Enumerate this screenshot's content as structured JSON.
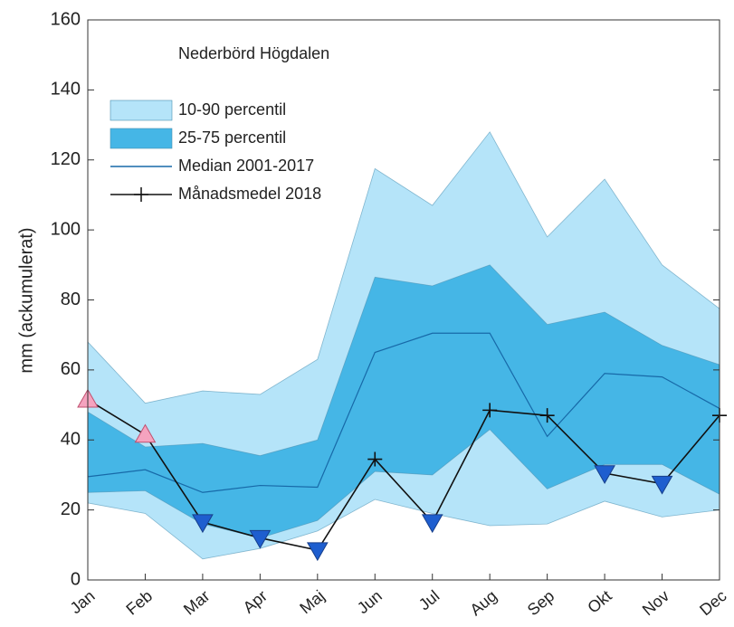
{
  "chart_data": {
    "type": "band-line",
    "title": "Nederbörd Högdalen",
    "ylabel": "mm (ackumulerat)",
    "categories": [
      "Jan",
      "Feb",
      "Mar",
      "Apr",
      "Maj",
      "Jun",
      "Jul",
      "Aug",
      "Sep",
      "Okt",
      "Nov",
      "Dec"
    ],
    "ylim": [
      0,
      160
    ],
    "yticks": [
      0,
      20,
      40,
      60,
      80,
      100,
      120,
      140,
      160
    ],
    "legend": "upper-left",
    "series": [
      {
        "name": "10-90 percentil",
        "kind": "band",
        "color": "#b5e4f9",
        "lower": [
          22,
          19,
          6,
          9,
          14,
          23,
          19,
          15.5,
          16,
          22.5,
          18,
          20
        ],
        "upper": [
          68,
          50.5,
          54,
          53,
          63,
          117.5,
          107,
          128,
          98,
          114.5,
          90,
          77.5
        ]
      },
      {
        "name": "25-75 percentil",
        "kind": "band",
        "color": "#45b6e6",
        "lower": [
          25,
          25.5,
          16,
          12,
          17,
          31,
          30,
          43,
          26,
          33,
          33,
          24.5
        ],
        "upper": [
          48,
          38,
          39,
          35.5,
          40,
          86.5,
          84,
          90,
          73,
          76.5,
          67,
          61.5
        ]
      },
      {
        "name": "Median 2001-2017",
        "kind": "line",
        "color": "#1769a8",
        "values": [
          29.5,
          31.5,
          25,
          27,
          26.5,
          65,
          70.5,
          70.5,
          41,
          59,
          58,
          49
        ]
      },
      {
        "name": "Månadsmedel 2018",
        "kind": "line",
        "color": "#111111",
        "values": [
          51.5,
          41.5,
          16.5,
          12,
          8.5,
          34.5,
          16.5,
          48.5,
          47,
          30.5,
          27.5,
          47
        ],
        "markers": [
          "up",
          "up",
          "down",
          "down",
          "down",
          "plus",
          "down",
          "plus",
          "plus",
          "down",
          "down",
          "plus"
        ],
        "marker_colors": {
          "up": "#f5a3bf",
          "down": "#1e5ecf",
          "plus": "#111111"
        }
      }
    ]
  }
}
